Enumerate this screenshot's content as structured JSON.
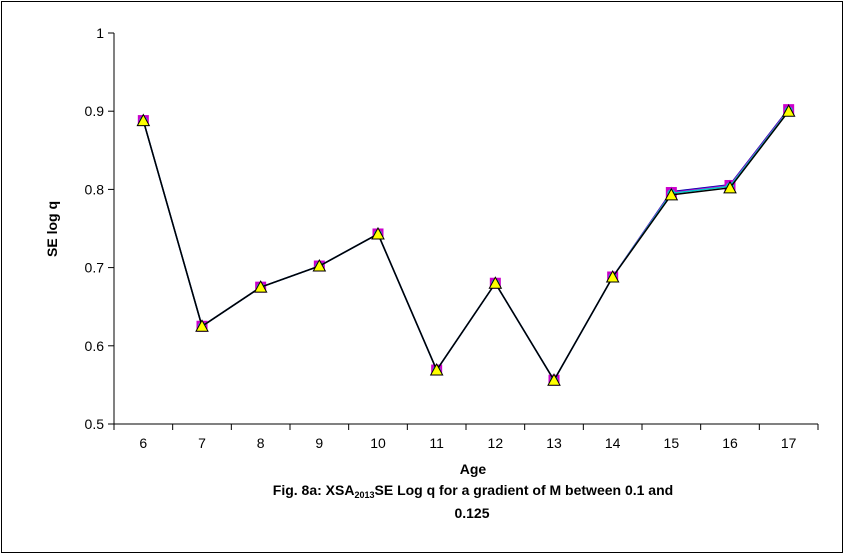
{
  "chart_data": {
    "type": "line",
    "xlabel": "Age",
    "ylabel": "SE log q",
    "caption": {
      "prefix": "Fig.  8a: XSA",
      "subscript": "2013",
      "suffix": "SE  Log q for a gradient of M between 0.1 and",
      "line2": "0.125"
    },
    "categories": [
      "6",
      "7",
      "8",
      "9",
      "10",
      "11",
      "12",
      "13",
      "14",
      "15",
      "16",
      "17"
    ],
    "ylim": [
      0.5,
      1
    ],
    "yticks": [
      "0.5",
      "0.6",
      "0.7",
      "0.8",
      "0.9",
      "1"
    ],
    "grid": false,
    "legend": "none",
    "series": [
      {
        "color": "#0000aa",
        "marker": "diamond",
        "values": [
          0.888,
          0.625,
          0.675,
          0.702,
          0.743,
          0.569,
          0.68,
          0.556,
          0.688,
          0.797,
          0.806,
          0.903
        ]
      },
      {
        "color": "#cc00cc",
        "marker": "square",
        "values": [
          0.888,
          0.625,
          0.675,
          0.702,
          0.743,
          0.569,
          0.68,
          0.556,
          0.688,
          0.796,
          0.805,
          0.902
        ]
      },
      {
        "color": "#00cccc",
        "marker": "circle",
        "values": [
          0.888,
          0.625,
          0.675,
          0.702,
          0.743,
          0.569,
          0.68,
          0.556,
          0.688,
          0.795,
          0.804,
          0.901
        ]
      },
      {
        "color": "#000000",
        "marker": "triangle",
        "fill": "#ffff00",
        "values": [
          0.888,
          0.625,
          0.675,
          0.702,
          0.743,
          0.569,
          0.68,
          0.556,
          0.688,
          0.793,
          0.802,
          0.9
        ]
      }
    ]
  }
}
